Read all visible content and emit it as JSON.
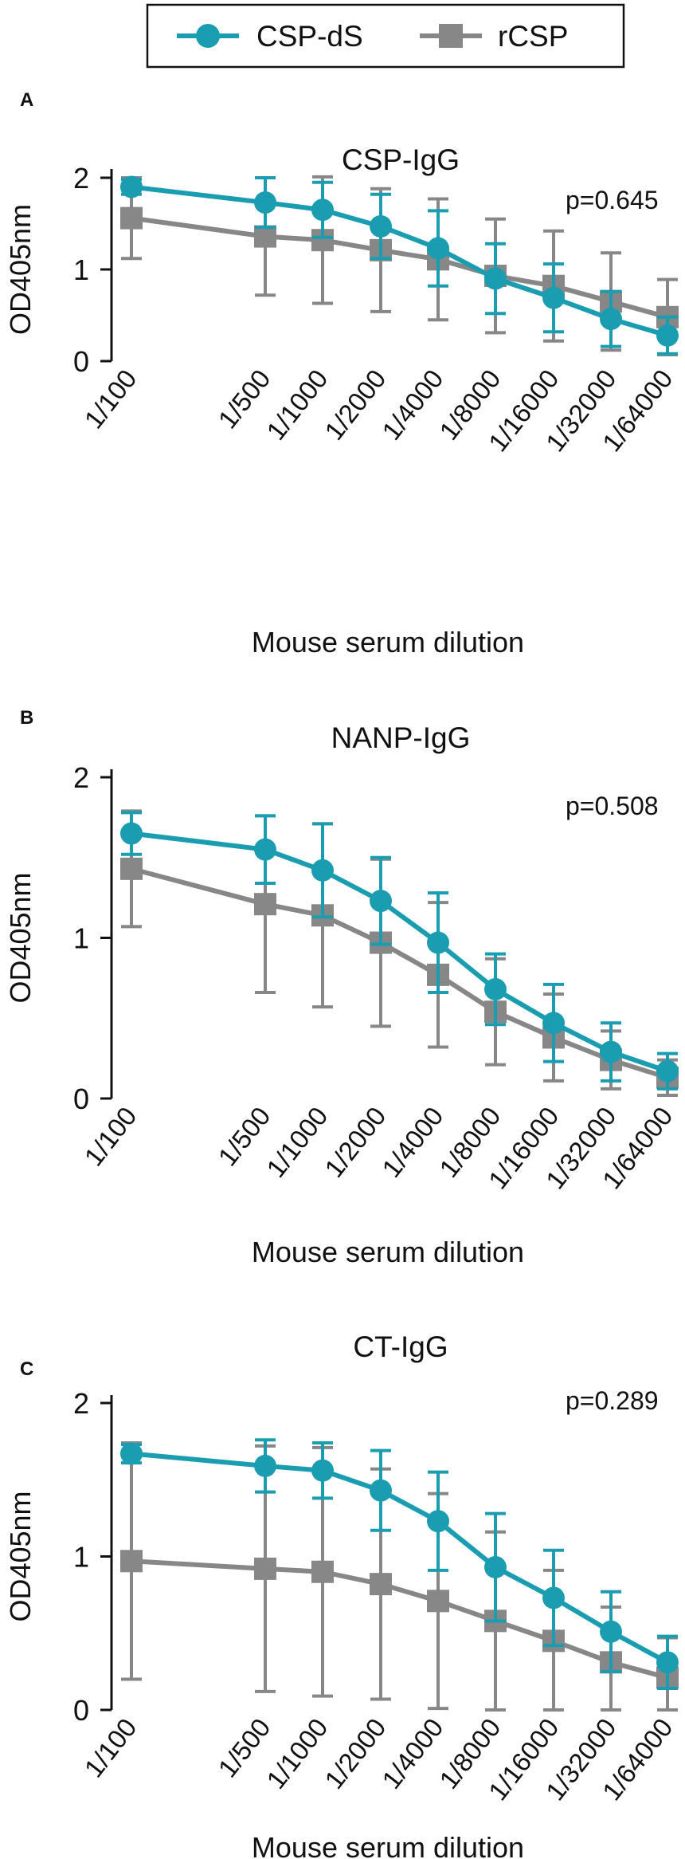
{
  "legend": {
    "items": [
      {
        "label": "CSP-dS",
        "color": "#1a9db1",
        "marker": "circle"
      },
      {
        "label": "rCSP",
        "color": "#878787",
        "marker": "square"
      }
    ]
  },
  "chart_data": [
    {
      "type": "line",
      "panel": "A",
      "title": "CSP-IgG",
      "annotation": "p=0.645",
      "xlabel": "Mouse serum dilution",
      "ylabel": "OD405nm",
      "ylim": [
        0,
        2
      ],
      "yticks": [
        "0",
        "1",
        "2"
      ],
      "categories": [
        "1/100",
        "1/500",
        "1/1000",
        "1/2000",
        "1/4000",
        "1/8000",
        "1/16000",
        "1/32000",
        "1/64000"
      ],
      "series": [
        {
          "name": "CSP-dS",
          "color": "#1a9db1",
          "marker": "circle",
          "values": [
            1.9,
            1.73,
            1.65,
            1.47,
            1.23,
            0.9,
            0.69,
            0.46,
            0.28
          ],
          "err": [
            0.08,
            0.27,
            0.3,
            0.35,
            0.41,
            0.38,
            0.37,
            0.3,
            0.2
          ]
        },
        {
          "name": "rCSP",
          "color": "#878787",
          "marker": "square",
          "values": [
            1.56,
            1.36,
            1.32,
            1.21,
            1.11,
            0.93,
            0.82,
            0.65,
            0.48
          ],
          "err": [
            0.44,
            0.64,
            0.69,
            0.67,
            0.66,
            0.62,
            0.6,
            0.53,
            0.41
          ]
        }
      ]
    },
    {
      "type": "line",
      "panel": "B",
      "title": "NANP-IgG",
      "annotation": "p=0.508",
      "xlabel": "Mouse serum dilution",
      "ylabel": "OD405nm",
      "ylim": [
        0,
        2
      ],
      "yticks": [
        "0",
        "1",
        "2"
      ],
      "categories": [
        "1/100",
        "1/500",
        "1/1000",
        "1/2000",
        "1/4000",
        "1/8000",
        "1/16000",
        "1/32000",
        "1/64000"
      ],
      "series": [
        {
          "name": "CSP-dS",
          "color": "#1a9db1",
          "marker": "circle",
          "values": [
            1.65,
            1.55,
            1.42,
            1.23,
            0.97,
            0.68,
            0.47,
            0.29,
            0.17
          ],
          "err": [
            0.13,
            0.21,
            0.29,
            0.27,
            0.31,
            0.22,
            0.24,
            0.18,
            0.11
          ]
        },
        {
          "name": "rCSP",
          "color": "#878787",
          "marker": "square",
          "values": [
            1.43,
            1.21,
            1.14,
            0.97,
            0.77,
            0.54,
            0.38,
            0.24,
            0.13
          ],
          "err": [
            0.36,
            0.55,
            0.57,
            0.52,
            0.45,
            0.33,
            0.27,
            0.18,
            0.11
          ]
        }
      ]
    },
    {
      "type": "line",
      "panel": "C",
      "title": "CT-IgG",
      "annotation": "p=0.289",
      "xlabel": "Mouse serum dilution",
      "ylabel": "OD405nm",
      "ylim": [
        0,
        2
      ],
      "yticks": [
        "0",
        "1",
        "2"
      ],
      "categories": [
        "1/100",
        "1/500",
        "1/1000",
        "1/2000",
        "1/4000",
        "1/8000",
        "1/16000",
        "1/32000",
        "1/64000"
      ],
      "series": [
        {
          "name": "CSP-dS",
          "color": "#1a9db1",
          "marker": "circle",
          "values": [
            1.67,
            1.59,
            1.56,
            1.43,
            1.23,
            0.93,
            0.73,
            0.51,
            0.31
          ],
          "err": [
            0.06,
            0.17,
            0.18,
            0.26,
            0.32,
            0.35,
            0.31,
            0.26,
            0.17
          ]
        },
        {
          "name": "rCSP",
          "color": "#878787",
          "marker": "square",
          "values": [
            0.97,
            0.92,
            0.9,
            0.82,
            0.71,
            0.58,
            0.45,
            0.31,
            0.21
          ],
          "err": [
            0.77,
            0.8,
            0.81,
            0.75,
            0.7,
            0.58,
            0.46,
            0.36,
            0.26
          ]
        }
      ]
    }
  ]
}
